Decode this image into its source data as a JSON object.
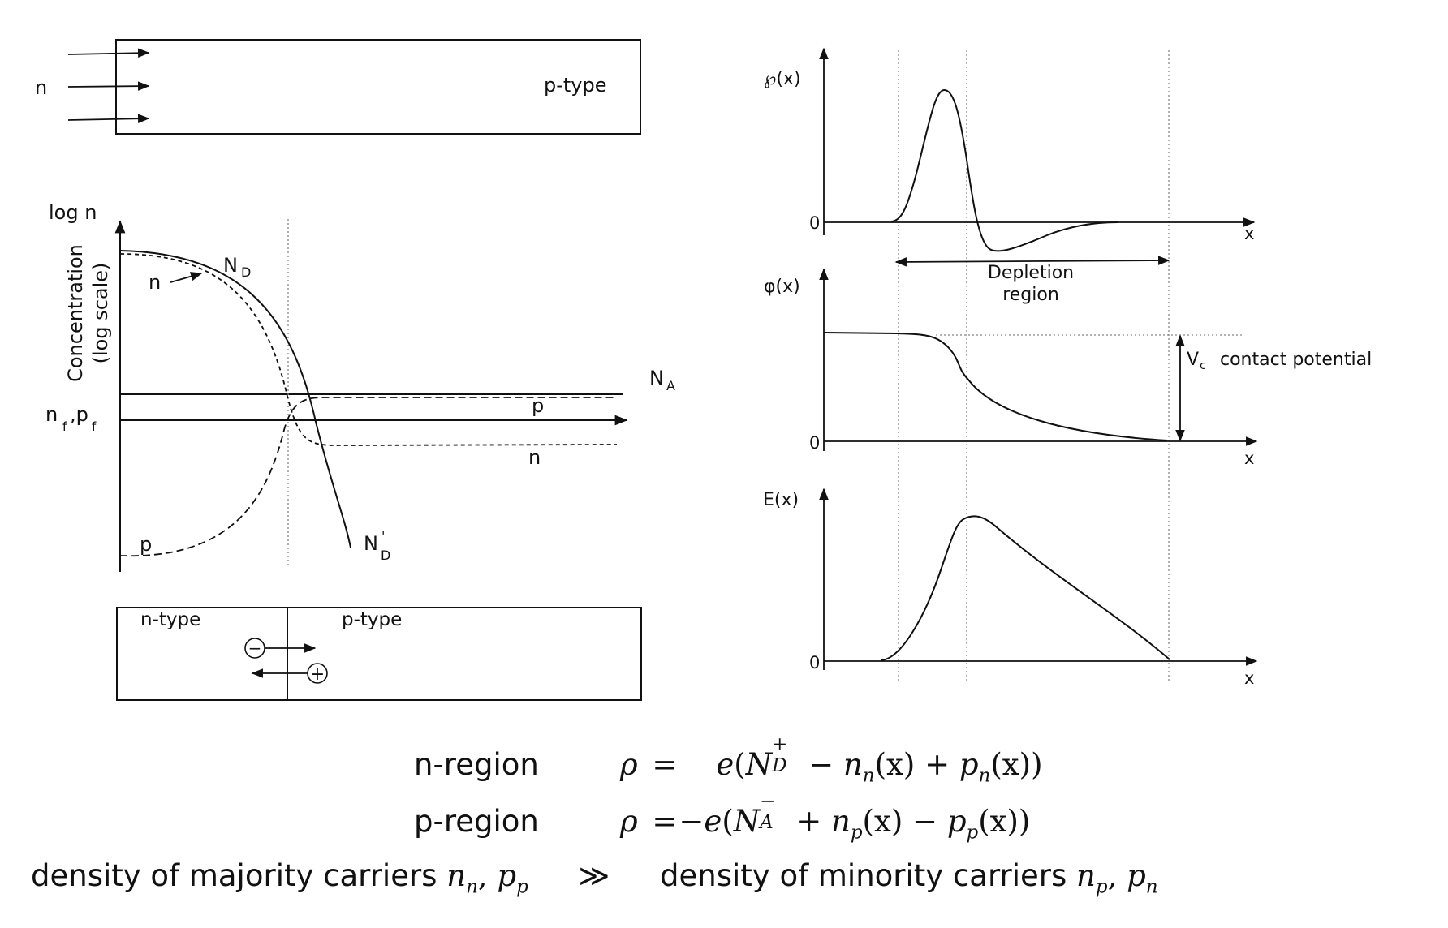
{
  "top_bar": {
    "carrier_label": "n",
    "region_label": "p-type"
  },
  "concentration_plot": {
    "y_top_label": "log n",
    "y_axis_title_line1": "Concentration",
    "y_axis_title_line2": "(log scale)",
    "level_label_main": "n",
    "level_label_sub1": "f",
    "level_label_mid": ",p",
    "level_label_sub2": "f",
    "nd_label": "N",
    "nd_sub": "D",
    "nd_prime_label": "N",
    "nd_prime_sup": "'",
    "nd_prime_sub": "D",
    "na_label": "N",
    "na_sub": "A",
    "n_curve_label": "n",
    "p_curve_label_left": "p",
    "p_curve_label_right": "p",
    "n_curve_label_right": "n"
  },
  "junction_bar": {
    "n_label": "n-type",
    "p_label": "p-type",
    "minus_glyph": "−",
    "plus_glyph": "+"
  },
  "rho_plot": {
    "y_label": "℘(x)",
    "zero_label": "0",
    "x_label": "x"
  },
  "depletion": {
    "line1": "Depletion",
    "line2": "region"
  },
  "phi_plot": {
    "y_label": "φ(x)",
    "zero_label": "0",
    "x_label": "x",
    "vc_main": "V",
    "vc_sub": "c",
    "vc_text": "contact potential"
  },
  "field_plot": {
    "y_label": "E(x)",
    "zero_label": "0",
    "x_label": "x"
  },
  "equations": {
    "n_region": {
      "label": "n-region",
      "rho": "ρ",
      "eq": "=",
      "sign": "",
      "e": "e",
      "open": "(",
      "N": "N",
      "N_sup": "+",
      "N_sub": "D",
      "op1": "−",
      "t1": "n",
      "t1_sub": "n",
      "x1": "(x)",
      "op2": "+",
      "t2": "p",
      "t2_sub": "n",
      "x2": "(x))"
    },
    "p_region": {
      "label": "p-region",
      "rho": "ρ",
      "eq": "=",
      "sign": "−",
      "e": "e",
      "open": "(",
      "N": "N",
      "N_sup": "−",
      "N_sub": "A",
      "op1": "+",
      "t1": "n",
      "t1_sub": "p",
      "x1": "(x)",
      "op2": "−",
      "t2": "p",
      "t2_sub": "p",
      "x2": "(x))"
    },
    "density": {
      "left": "density of majority carriers",
      "left_v1": "n",
      "left_v1_sub": "n",
      "comma1": ",",
      "left_v2": "p",
      "left_v2_sub": "p",
      "rel": "≫",
      "right": "density of minority carriers",
      "right_v1": "n",
      "right_v1_sub": "p",
      "comma2": ",",
      "right_v2": "p",
      "right_v2_sub": "n"
    }
  }
}
